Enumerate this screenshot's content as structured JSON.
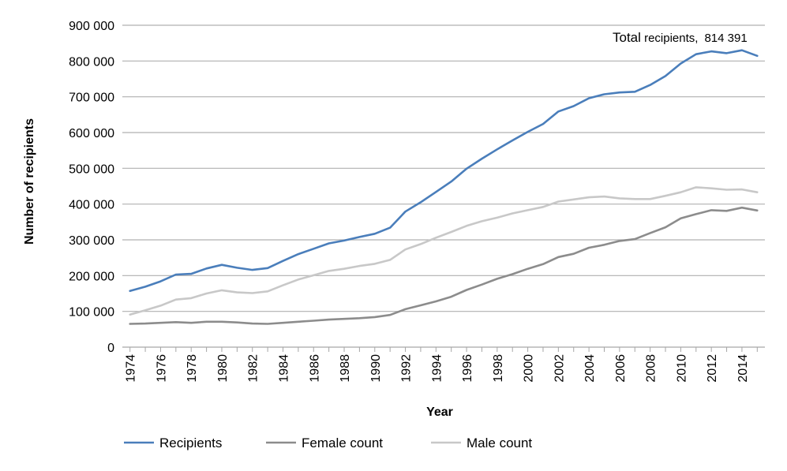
{
  "chart_data": {
    "type": "line",
    "title": "",
    "xlabel": "Year",
    "ylabel": "Number of recipients",
    "ylim": [
      0,
      900000
    ],
    "y_ticks": [
      "0",
      "100 000",
      "200 000",
      "300 000",
      "400 000",
      "500 000",
      "600 000",
      "700 000",
      "800 000",
      "900 000"
    ],
    "x_ticks": [
      "1974",
      "1976",
      "1978",
      "1980",
      "1982",
      "1984",
      "1986",
      "1988",
      "1990",
      "1992",
      "1994",
      "1996",
      "1998",
      "2000",
      "2002",
      "2004",
      "2006",
      "2008",
      "2010",
      "2012",
      "2014"
    ],
    "grid": "horizontal",
    "legend_position": "bottom",
    "annotation": {
      "bold": "Total",
      "text": " recipients,",
      "value": "814 391"
    },
    "x": [
      1974,
      1975,
      1976,
      1977,
      1978,
      1979,
      1980,
      1981,
      1982,
      1983,
      1984,
      1985,
      1986,
      1987,
      1988,
      1989,
      1990,
      1991,
      1992,
      1993,
      1994,
      1995,
      1996,
      1997,
      1998,
      1999,
      2000,
      2001,
      2002,
      2003,
      2004,
      2005,
      2006,
      2007,
      2008,
      2009,
      2010,
      2011,
      2012,
      2013,
      2014,
      2015
    ],
    "series": [
      {
        "name": "Recipients",
        "color": "#4a7ebb",
        "values": [
          157000,
          169000,
          184000,
          203000,
          205000,
          220000,
          230000,
          222000,
          216000,
          221000,
          241000,
          260000,
          275000,
          290000,
          298000,
          308000,
          317000,
          334000,
          379000,
          405000,
          434000,
          463000,
          499000,
          527000,
          553000,
          578000,
          602000,
          624000,
          659000,
          674000,
          696000,
          707000,
          712000,
          714000,
          733000,
          758000,
          793000,
          819000,
          827000,
          822000,
          830000,
          814391
        ]
      },
      {
        "name": "Female count",
        "color": "#8c8c8c",
        "values": [
          65000,
          66000,
          68000,
          70000,
          68000,
          71000,
          71000,
          69000,
          66000,
          65000,
          68000,
          71000,
          74000,
          77000,
          79000,
          81000,
          84000,
          90000,
          106000,
          117000,
          128000,
          141000,
          160000,
          175000,
          191000,
          204000,
          219000,
          232000,
          252000,
          261000,
          278000,
          286000,
          297000,
          302000,
          319000,
          335000,
          360000,
          372000,
          383000,
          381000,
          390000,
          382000
        ]
      },
      {
        "name": "Male count",
        "color": "#c8c8c8",
        "values": [
          91000,
          103000,
          116000,
          133000,
          137000,
          150000,
          159000,
          153000,
          151000,
          156000,
          173000,
          189000,
          201000,
          213000,
          219000,
          227000,
          233000,
          244000,
          273000,
          288000,
          306000,
          322000,
          339000,
          352000,
          362000,
          374000,
          383000,
          392000,
          407000,
          413000,
          419000,
          421000,
          416000,
          414000,
          414000,
          423000,
          433000,
          447000,
          444000,
          440000,
          441000,
          433000
        ]
      }
    ]
  }
}
